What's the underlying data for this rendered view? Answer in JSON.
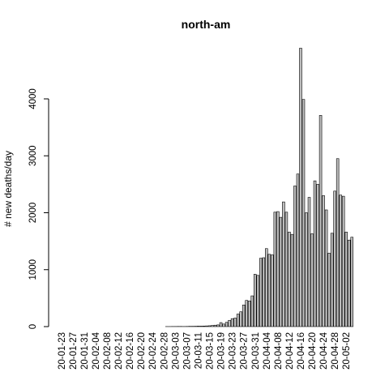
{
  "chart_data": {
    "type": "bar",
    "title": "north-am",
    "xlabel": "",
    "ylabel": "# new deaths/day",
    "ylim": [
      0,
      5000
    ],
    "yticks": [
      0,
      1000,
      2000,
      3000,
      4000
    ],
    "grid": false,
    "bar_fill": "#bebebe",
    "bar_stroke": "#000000",
    "x_tick_labels": [
      "20-01-23",
      "20-01-27",
      "20-01-31",
      "20-02-04",
      "20-02-08",
      "20-02-12",
      "20-02-16",
      "20-02-20",
      "20-02-24",
      "20-02-28",
      "20-03-03",
      "20-03-07",
      "20-03-11",
      "20-03-15",
      "20-03-19",
      "20-03-23",
      "20-03-27",
      "20-03-31",
      "20-04-04",
      "20-04-08",
      "20-04-12",
      "20-04-16",
      "20-04-20",
      "20-04-24",
      "20-04-28",
      "20-05-02"
    ],
    "x": [
      "20-01-23",
      "20-01-24",
      "20-01-25",
      "20-01-26",
      "20-01-27",
      "20-01-28",
      "20-01-29",
      "20-01-30",
      "20-01-31",
      "20-02-01",
      "20-02-02",
      "20-02-03",
      "20-02-04",
      "20-02-05",
      "20-02-06",
      "20-02-07",
      "20-02-08",
      "20-02-09",
      "20-02-10",
      "20-02-11",
      "20-02-12",
      "20-02-13",
      "20-02-14",
      "20-02-15",
      "20-02-16",
      "20-02-17",
      "20-02-18",
      "20-02-19",
      "20-02-20",
      "20-02-21",
      "20-02-22",
      "20-02-23",
      "20-02-24",
      "20-02-25",
      "20-02-26",
      "20-02-27",
      "20-02-28",
      "20-02-29",
      "20-03-01",
      "20-03-02",
      "20-03-03",
      "20-03-04",
      "20-03-05",
      "20-03-06",
      "20-03-07",
      "20-03-08",
      "20-03-09",
      "20-03-10",
      "20-03-11",
      "20-03-12",
      "20-03-13",
      "20-03-14",
      "20-03-15",
      "20-03-16",
      "20-03-17",
      "20-03-18",
      "20-03-19",
      "20-03-20",
      "20-03-21",
      "20-03-22",
      "20-03-23",
      "20-03-24",
      "20-03-25",
      "20-03-26",
      "20-03-27",
      "20-03-28",
      "20-03-29",
      "20-03-30",
      "20-03-31",
      "20-04-01",
      "20-04-02",
      "20-04-03",
      "20-04-04",
      "20-04-05",
      "20-04-06",
      "20-04-07",
      "20-04-08",
      "20-04-09",
      "20-04-10",
      "20-04-11",
      "20-04-12",
      "20-04-13",
      "20-04-14",
      "20-04-15",
      "20-04-16",
      "20-04-17",
      "20-04-18",
      "20-04-19",
      "20-04-20",
      "20-04-21",
      "20-04-22",
      "20-04-23",
      "20-04-24",
      "20-04-25",
      "20-04-26",
      "20-04-27",
      "20-04-28",
      "20-04-29",
      "20-04-30",
      "20-05-01",
      "20-05-02",
      "20-05-03",
      "20-05-04"
    ],
    "values": [
      0,
      0,
      0,
      0,
      0,
      0,
      0,
      0,
      0,
      0,
      0,
      0,
      0,
      0,
      0,
      0,
      0,
      0,
      0,
      0,
      0,
      0,
      0,
      0,
      0,
      0,
      0,
      0,
      0,
      0,
      0,
      0,
      0,
      0,
      0,
      0,
      0,
      1,
      1,
      2,
      2,
      3,
      3,
      2,
      3,
      5,
      5,
      6,
      8,
      8,
      10,
      12,
      15,
      20,
      25,
      30,
      70,
      45,
      75,
      110,
      140,
      150,
      220,
      260,
      380,
      460,
      450,
      540,
      920,
      900,
      1200,
      1210,
      1370,
      1270,
      1260,
      2010,
      2020,
      1920,
      2190,
      2010,
      1660,
      1620,
      2470,
      2680,
      4890,
      3990,
      2000,
      2270,
      1630,
      2560,
      2500,
      3710,
      2300,
      2050,
      1290,
      1640,
      2380,
      2950,
      2310,
      2290,
      1660,
      1520,
      1570
    ]
  }
}
